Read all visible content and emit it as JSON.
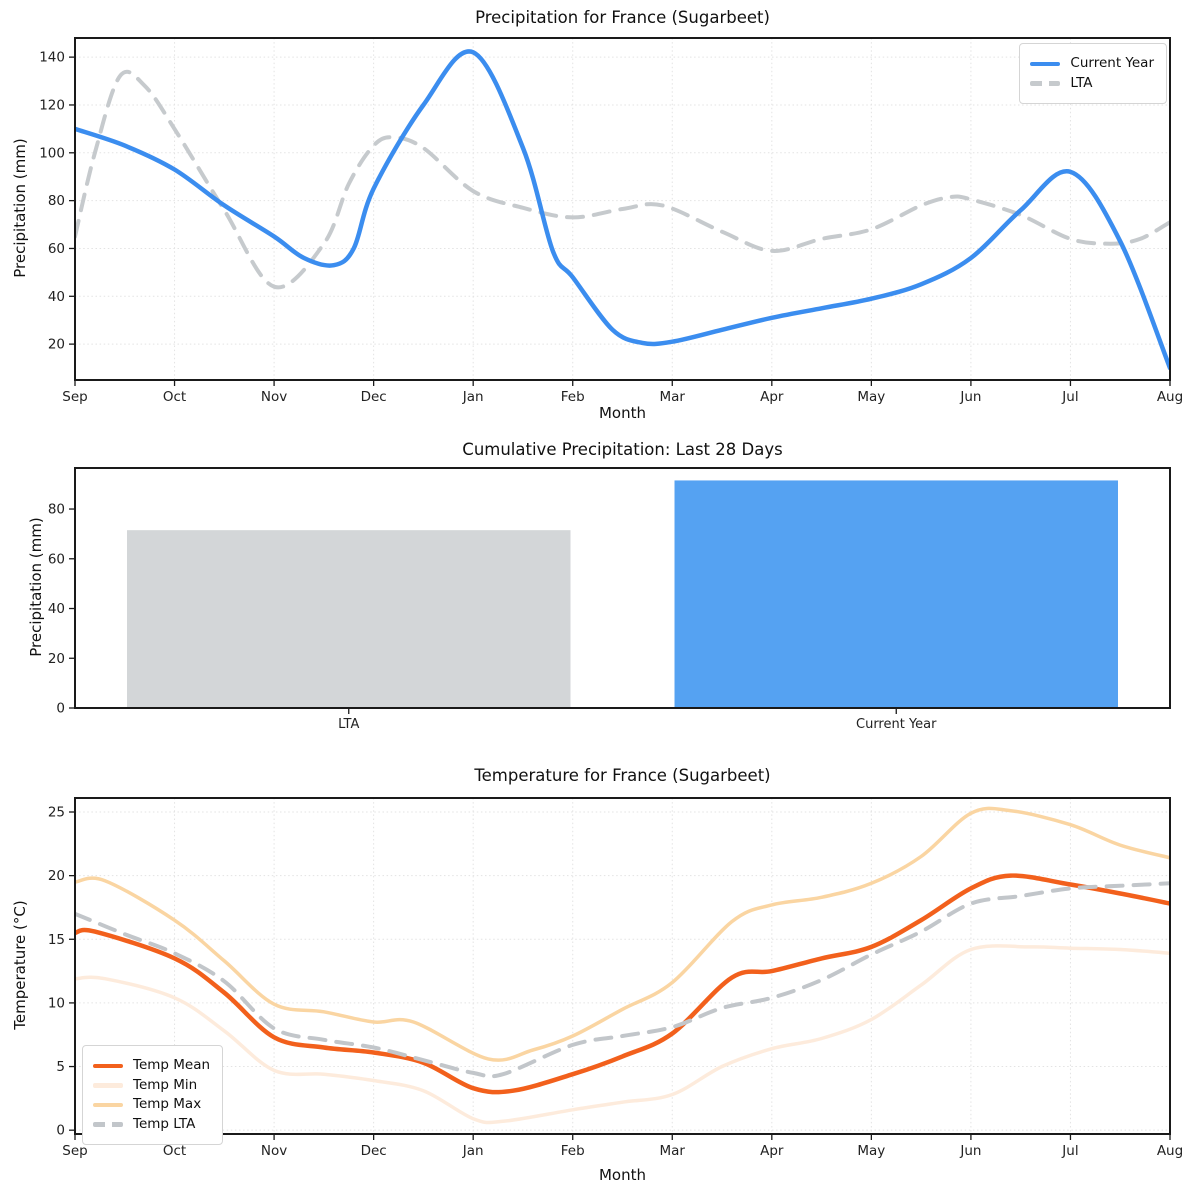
{
  "figure": {
    "background": "#ffffff"
  },
  "months": [
    "Sep",
    "Oct",
    "Nov",
    "Dec",
    "Jan",
    "Feb",
    "Mar",
    "Apr",
    "May",
    "Jun",
    "Jul",
    "Aug"
  ],
  "chart_data": [
    {
      "type": "line",
      "title": "Precipitation for France (Sugarbeet)",
      "xlabel": "Month",
      "ylabel": "Precipitation (mm)",
      "x_categories": [
        "Sep",
        "Oct",
        "Nov",
        "Dec",
        "Jan",
        "Feb",
        "Mar",
        "Apr",
        "May",
        "Jun",
        "Jul",
        "Aug"
      ],
      "x_unit": "month index, 0 = Sep to 11 = Aug",
      "ylim": [
        5,
        148
      ],
      "yticks": [
        20,
        40,
        60,
        80,
        100,
        120,
        140
      ],
      "grid": true,
      "legend_position": "upper right",
      "draw_order": [
        1,
        0
      ],
      "series": [
        {
          "name": "Current Year",
          "color": "#3B8DEF",
          "style": "solid",
          "width": 4.5,
          "points": [
            [
              0,
              110
            ],
            [
              0.5,
              103
            ],
            [
              1,
              93
            ],
            [
              1.5,
              78
            ],
            [
              2,
              65
            ],
            [
              2.3,
              56
            ],
            [
              2.6,
              53
            ],
            [
              2.8,
              60
            ],
            [
              3,
              85
            ],
            [
              3.5,
              120
            ],
            [
              4,
              142
            ],
            [
              4.5,
              102
            ],
            [
              4.8,
              59
            ],
            [
              5,
              48
            ],
            [
              5.4,
              26
            ],
            [
              5.7,
              20.5
            ],
            [
              6,
              21
            ],
            [
              6.5,
              26
            ],
            [
              7,
              31
            ],
            [
              7.5,
              35
            ],
            [
              8,
              39
            ],
            [
              8.5,
              45
            ],
            [
              9,
              56
            ],
            [
              9.5,
              76
            ],
            [
              10,
              92
            ],
            [
              10.5,
              63
            ],
            [
              11,
              10
            ]
          ]
        },
        {
          "name": "LTA",
          "color": "#C6CACD",
          "style": "dashed",
          "width": 4,
          "points": [
            [
              0,
              65
            ],
            [
              0.2,
              100
            ],
            [
              0.45,
              132
            ],
            [
              0.7,
              128
            ],
            [
              1,
              110
            ],
            [
              1.5,
              76
            ],
            [
              2,
              44
            ],
            [
              2.5,
              62
            ],
            [
              2.75,
              87
            ],
            [
              3,
              103
            ],
            [
              3.2,
              106.5
            ],
            [
              3.5,
              102
            ],
            [
              4,
              84
            ],
            [
              4.5,
              77
            ],
            [
              5,
              73
            ],
            [
              5.5,
              76.5
            ],
            [
              5.9,
              78
            ],
            [
              6.5,
              67
            ],
            [
              7,
              59
            ],
            [
              7.5,
              64
            ],
            [
              8,
              68
            ],
            [
              8.5,
              78
            ],
            [
              8.8,
              81.5
            ],
            [
              9,
              80.5
            ],
            [
              9.5,
              74
            ],
            [
              10,
              64
            ],
            [
              10.4,
              62
            ],
            [
              10.7,
              64
            ],
            [
              11,
              71
            ]
          ]
        }
      ]
    },
    {
      "type": "bar",
      "title": "Cumulative Precipitation: Last 28 Days",
      "ylabel": "Precipitation (mm)",
      "categories": [
        "LTA",
        "Current Year"
      ],
      "values": [
        71.5,
        91.5
      ],
      "bar_colors": [
        "#D3D6D8",
        "#55A2F2"
      ],
      "ylim": [
        0,
        96.5
      ],
      "yticks": [
        0,
        20,
        40,
        60,
        80
      ],
      "grid": false
    },
    {
      "type": "line",
      "title": "Temperature for France (Sugarbeet)",
      "xlabel": "Month",
      "ylabel": "Temperature (°C)",
      "x_categories": [
        "Sep",
        "Oct",
        "Nov",
        "Dec",
        "Jan",
        "Feb",
        "Mar",
        "Apr",
        "May",
        "Jun",
        "Jul",
        "Aug"
      ],
      "x_unit": "month index, 0 = Sep to 11 = Aug",
      "ylim": [
        -0.3,
        26.1
      ],
      "yticks": [
        0,
        5,
        10,
        15,
        20,
        25
      ],
      "grid": true,
      "legend_position": "lower left",
      "draw_order": [
        1,
        2,
        0,
        3
      ],
      "series": [
        {
          "name": "Temp Mean",
          "color": "#F2601C",
          "style": "solid",
          "width": 4.5,
          "points": [
            [
              0,
              15.5
            ],
            [
              0.2,
              15.6
            ],
            [
              1,
              13.5
            ],
            [
              1.5,
              10.8
            ],
            [
              2,
              7.3
            ],
            [
              2.5,
              6.5
            ],
            [
              3,
              6.1
            ],
            [
              3.5,
              5.3
            ],
            [
              4,
              3.3
            ],
            [
              4.4,
              3.1
            ],
            [
              5,
              4.4
            ],
            [
              5.5,
              5.8
            ],
            [
              6,
              7.6
            ],
            [
              6.6,
              12
            ],
            [
              7,
              12.5
            ],
            [
              7.5,
              13.5
            ],
            [
              8,
              14.4
            ],
            [
              8.5,
              16.5
            ],
            [
              9,
              19
            ],
            [
              9.4,
              20
            ],
            [
              10,
              19.3
            ],
            [
              10.5,
              18.6
            ],
            [
              11,
              17.8
            ]
          ]
        },
        {
          "name": "Temp Min",
          "color": "#FDEBDC",
          "style": "solid",
          "width": 3.5,
          "points": [
            [
              0,
              11.9
            ],
            [
              0.3,
              11.9
            ],
            [
              1,
              10.4
            ],
            [
              1.5,
              7.8
            ],
            [
              2,
              4.7
            ],
            [
              2.5,
              4.4
            ],
            [
              3,
              3.9
            ],
            [
              3.5,
              3.1
            ],
            [
              4,
              0.9
            ],
            [
              4.3,
              0.7
            ],
            [
              5,
              1.6
            ],
            [
              5.5,
              2.2
            ],
            [
              6,
              2.8
            ],
            [
              6.5,
              5
            ],
            [
              7,
              6.4
            ],
            [
              7.5,
              7.2
            ],
            [
              8,
              8.7
            ],
            [
              8.5,
              11.4
            ],
            [
              9,
              14.2
            ],
            [
              9.6,
              14.4
            ],
            [
              10,
              14.3
            ],
            [
              10.5,
              14.2
            ],
            [
              11,
              13.9
            ]
          ]
        },
        {
          "name": "Temp Max",
          "color": "#FAD5A2",
          "style": "solid",
          "width": 3.5,
          "points": [
            [
              0,
              19.5
            ],
            [
              0.3,
              19.6
            ],
            [
              1,
              16.5
            ],
            [
              1.5,
              13.3
            ],
            [
              2,
              9.9
            ],
            [
              2.5,
              9.3
            ],
            [
              3,
              8.5
            ],
            [
              3.4,
              8.5
            ],
            [
              4.15,
              5.6
            ],
            [
              4.6,
              6.3
            ],
            [
              5,
              7.4
            ],
            [
              5.5,
              9.5
            ],
            [
              6,
              11.6
            ],
            [
              6.6,
              16.4
            ],
            [
              7,
              17.7
            ],
            [
              7.5,
              18.3
            ],
            [
              8,
              19.4
            ],
            [
              8.5,
              21.5
            ],
            [
              9,
              24.9
            ],
            [
              9.4,
              25.1
            ],
            [
              10,
              24
            ],
            [
              10.5,
              22.4
            ],
            [
              11,
              21.4
            ]
          ]
        },
        {
          "name": "Temp LTA",
          "color": "#C2C6CA",
          "style": "dashed",
          "width": 4,
          "points": [
            [
              0,
              17
            ],
            [
              0.5,
              15.4
            ],
            [
              1,
              13.9
            ],
            [
              1.5,
              11.7
            ],
            [
              2,
              8
            ],
            [
              2.5,
              7.1
            ],
            [
              3,
              6.5
            ],
            [
              3.5,
              5.5
            ],
            [
              4,
              4.5
            ],
            [
              4.3,
              4.4
            ],
            [
              5,
              6.7
            ],
            [
              5.5,
              7.4
            ],
            [
              6,
              8.1
            ],
            [
              6.5,
              9.6
            ],
            [
              7,
              10.4
            ],
            [
              7.5,
              11.8
            ],
            [
              8,
              13.8
            ],
            [
              8.5,
              15.6
            ],
            [
              9,
              17.8
            ],
            [
              9.5,
              18.4
            ],
            [
              10,
              19
            ],
            [
              10.5,
              19.2
            ],
            [
              11,
              19.4
            ]
          ]
        }
      ]
    }
  ]
}
